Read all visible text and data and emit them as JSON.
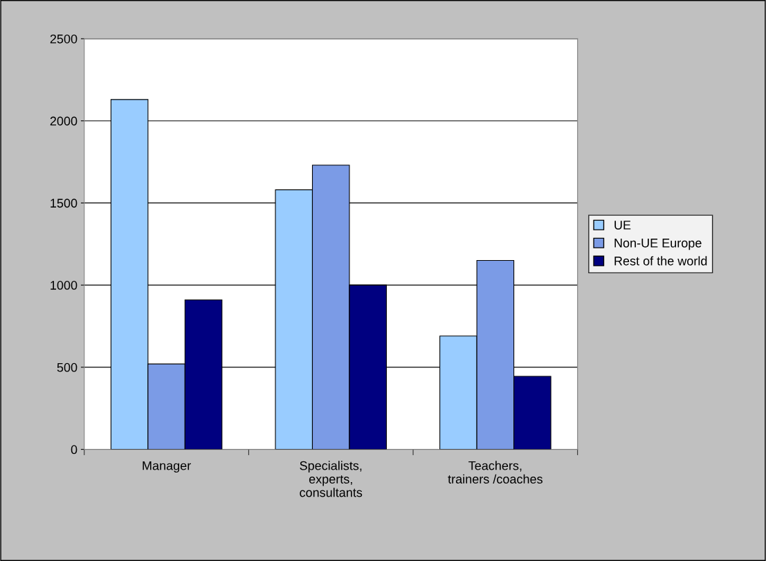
{
  "chart_data": {
    "type": "bar",
    "categories": [
      "Manager",
      "Specialists,\nexperts,\nconsultants",
      "Teachers,\ntrainers /coaches"
    ],
    "series": [
      {
        "name": "UE",
        "color": "#99ccff",
        "values": [
          2130,
          1580,
          690
        ]
      },
      {
        "name": "Non-UE Europe",
        "color": "#7b9be6",
        "values": [
          520,
          1730,
          1150
        ]
      },
      {
        "name": "Rest of the world",
        "color": "#000080",
        "values": [
          910,
          1000,
          445
        ]
      }
    ],
    "ylim": [
      0,
      2500
    ],
    "yticks": [
      0,
      500,
      1000,
      1500,
      2000,
      2500
    ],
    "grid": "y",
    "legend": "right"
  }
}
